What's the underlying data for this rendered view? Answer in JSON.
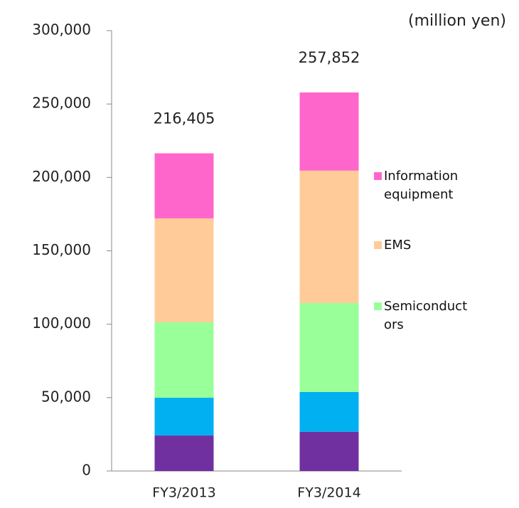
{
  "chart_data": {
    "type": "stacked_bar",
    "unit_label": "(million yen)",
    "categories": [
      "FY3/2013",
      "FY3/2014"
    ],
    "series": [
      {
        "color": "#7030a0",
        "values": [
          24200,
          26700
        ]
      },
      {
        "color": "#00b0f0",
        "values": [
          25700,
          27100
        ]
      },
      {
        "name": "Semiconductors",
        "color": "#99ff99",
        "values": [
          51400,
          60600
        ]
      },
      {
        "name": "EMS",
        "color": "#ffcc99",
        "values": [
          70800,
          90200
        ]
      },
      {
        "name": "Information equipment",
        "color": "#ff66cc",
        "values": [
          44305,
          53252
        ]
      }
    ],
    "totals": [
      216405,
      257852
    ],
    "total_labels": [
      "216,405",
      "257,852"
    ],
    "ylim": [
      0,
      300000
    ],
    "yticks": [
      0,
      {
        "value": 50000,
        "label": "50,000"
      },
      {
        "value": 100000,
        "label": "100,000"
      },
      {
        "value": 150000,
        "label": "150,000"
      },
      {
        "value": 200000,
        "label": "200,000"
      },
      {
        "value": 250000,
        "label": "250,000"
      },
      {
        "value": 300000,
        "label": "300,000"
      }
    ],
    "legend": "right"
  }
}
